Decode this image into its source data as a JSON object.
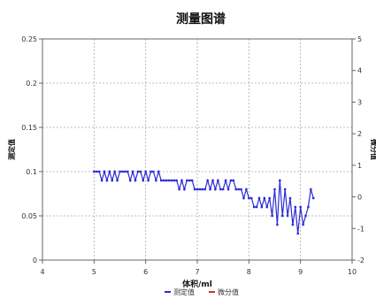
{
  "chart_data": {
    "type": "line",
    "title": "测量图谱",
    "xlabel": "体积/ml",
    "ylabel_left": "测定值",
    "ylabel_right": "微分值",
    "xlim": [
      4,
      10
    ],
    "ylim": [
      0,
      0.25
    ],
    "y2lim": [
      -2,
      5
    ],
    "x_ticks": [
      4,
      5,
      6,
      7,
      8,
      9,
      10
    ],
    "y_ticks": [
      0,
      0.05,
      0.1,
      0.15,
      0.2,
      0.25
    ],
    "y_tick_labels": [
      "0",
      "0.05",
      "0.1",
      "0.15",
      "0.2",
      "0.25"
    ],
    "y2_ticks": [
      -2,
      -1,
      0,
      1,
      2,
      3,
      4,
      5
    ],
    "y2_tick_labels": [
      "-2",
      "-1",
      "0",
      "1",
      "2",
      "3",
      "4",
      "5"
    ],
    "grid": true,
    "legend_position": "bottom",
    "series": [
      {
        "name": "测定值",
        "color": "#2b2bd6",
        "axis": "left",
        "x": [
          5.0,
          5.05,
          5.1,
          5.15,
          5.2,
          5.25,
          5.3,
          5.35,
          5.4,
          5.45,
          5.5,
          5.55,
          5.6,
          5.65,
          5.7,
          5.75,
          5.8,
          5.85,
          5.9,
          5.95,
          6.0,
          6.05,
          6.1,
          6.15,
          6.2,
          6.25,
          6.3,
          6.35,
          6.4,
          6.45,
          6.5,
          6.55,
          6.6,
          6.65,
          6.7,
          6.75,
          6.8,
          6.85,
          6.9,
          6.95,
          7.0,
          7.05,
          7.1,
          7.15,
          7.2,
          7.25,
          7.3,
          7.35,
          7.4,
          7.45,
          7.5,
          7.55,
          7.6,
          7.65,
          7.7,
          7.75,
          7.8,
          7.85,
          7.9,
          7.95,
          8.0,
          8.05,
          8.1,
          8.15,
          8.2,
          8.25,
          8.3,
          8.35,
          8.4,
          8.45,
          8.5,
          8.55,
          8.6,
          8.65,
          8.7,
          8.75,
          8.8,
          8.85,
          8.9,
          8.95,
          9.0,
          9.05,
          9.1,
          9.15,
          9.2,
          9.25
        ],
        "y": [
          0.1,
          0.1,
          0.1,
          0.09,
          0.1,
          0.09,
          0.1,
          0.09,
          0.1,
          0.09,
          0.1,
          0.1,
          0.1,
          0.1,
          0.09,
          0.1,
          0.09,
          0.1,
          0.1,
          0.09,
          0.1,
          0.09,
          0.1,
          0.1,
          0.09,
          0.1,
          0.09,
          0.09,
          0.09,
          0.09,
          0.09,
          0.09,
          0.09,
          0.08,
          0.09,
          0.08,
          0.09,
          0.09,
          0.09,
          0.08,
          0.08,
          0.08,
          0.08,
          0.08,
          0.09,
          0.08,
          0.09,
          0.08,
          0.09,
          0.08,
          0.08,
          0.09,
          0.08,
          0.09,
          0.09,
          0.08,
          0.08,
          0.08,
          0.07,
          0.08,
          0.07,
          0.07,
          0.06,
          0.06,
          0.07,
          0.06,
          0.07,
          0.06,
          0.07,
          0.05,
          0.08,
          0.04,
          0.09,
          0.05,
          0.08,
          0.05,
          0.07,
          0.04,
          0.06,
          0.03,
          0.06,
          0.04,
          0.05,
          0.06,
          0.08,
          0.07
        ]
      },
      {
        "name": "微分值",
        "color": "#d62b2b",
        "axis": "right",
        "x": [],
        "y": []
      }
    ]
  }
}
